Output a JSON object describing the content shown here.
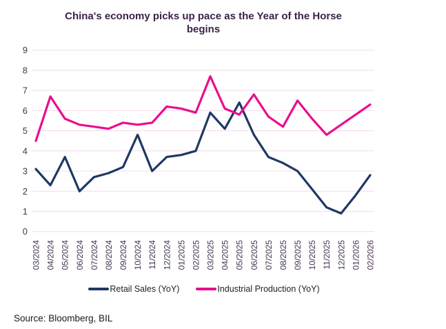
{
  "title": "China's economy picks up pace as the Year of the Horse begins",
  "source": "Source: Bloomberg, BIL",
  "colors": {
    "background": "#ffffff",
    "title_text": "#3c2348",
    "axis_text": "#453250",
    "gridline": "#f2dcea",
    "retail_sales_line": "#1f3864",
    "industrial_production_line": "#ea0d8c",
    "legend_text": "#222222",
    "source_text": "#1a1a1a"
  },
  "chart_data": {
    "type": "line",
    "title": "China's economy picks up pace as the Year of the Horse begins",
    "categories": [
      "03/2024",
      "04/2024",
      "05/2024",
      "06/2024",
      "07/2024",
      "08/2024",
      "09/2024",
      "10/2024",
      "11/2024",
      "12/2024",
      "01/2025",
      "02/2025",
      "03/2025",
      "04/2025",
      "05/2025",
      "06/2025",
      "07/2025",
      "08/2025",
      "09/2025",
      "10/2025",
      "11/2025",
      "12/2025",
      "01/2026",
      "02/2026"
    ],
    "series": [
      {
        "name": "Retail Sales (YoY)",
        "color": "#1f3864",
        "values": [
          3.1,
          2.3,
          3.7,
          2.0,
          2.7,
          2.9,
          3.2,
          4.8,
          3.0,
          3.7,
          3.8,
          4.0,
          5.9,
          5.1,
          6.4,
          4.8,
          3.7,
          3.4,
          3.0,
          2.1,
          1.2,
          0.9,
          1.8,
          2.8
        ]
      },
      {
        "name": "Industrial Production (YoY)",
        "color": "#ea0d8c",
        "values": [
          4.5,
          6.7,
          5.6,
          5.3,
          5.2,
          5.1,
          5.4,
          5.3,
          5.4,
          6.2,
          6.1,
          5.9,
          7.7,
          6.1,
          5.8,
          6.8,
          5.7,
          5.2,
          6.5,
          5.6,
          4.8,
          5.3,
          5.8,
          6.3
        ]
      }
    ],
    "xlabel": "",
    "ylabel": "",
    "ylim": [
      0,
      9
    ],
    "yticks": [
      0,
      1,
      2,
      3,
      4,
      5,
      6,
      7,
      8,
      9
    ],
    "grid": "horizontal",
    "legend_position": "bottom"
  }
}
